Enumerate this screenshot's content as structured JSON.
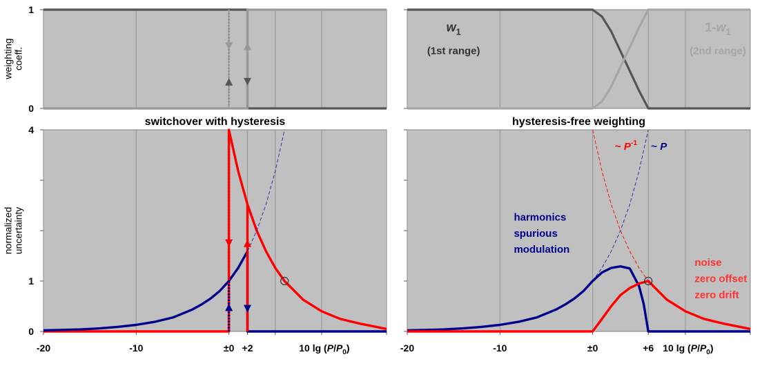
{
  "chart_data": [
    {
      "type": "line",
      "title": "",
      "xlim": [
        -20,
        17
      ],
      "ylim": [
        0,
        1
      ],
      "ylabel": [
        "weighting",
        "coeff."
      ],
      "yticks": [
        {
          "v": 0,
          "label": "0"
        },
        {
          "v": 1,
          "label": "1"
        }
      ],
      "xgrid": [
        -20,
        -10,
        0,
        2,
        5,
        10,
        17
      ],
      "series": [
        {
          "name": "range 1 switching down",
          "color": "#555555",
          "style": "solid",
          "width": 3.2,
          "x": [
            -20,
            2,
            2,
            17
          ],
          "y": [
            1,
            1,
            0,
            0
          ]
        },
        {
          "name": "range 2 switching up",
          "color": "#999999",
          "style": "solid",
          "width": 3.2,
          "x": [
            -20,
            2,
            2,
            17
          ],
          "y": [
            0,
            0,
            1,
            1
          ]
        },
        {
          "name": "range 1 switching back",
          "color": "#555555",
          "style": "dotted",
          "width": 2.6,
          "x": [
            0,
            0
          ],
          "y": [
            1,
            0
          ]
        },
        {
          "name": "range 2 switching back",
          "color": "#999999",
          "style": "dotted",
          "width": 2.6,
          "x": [
            0,
            0
          ],
          "y": [
            1,
            0
          ]
        }
      ],
      "arrows": [
        {
          "x": 0,
          "y": 0.27,
          "dir": "up",
          "color": "#555555"
        },
        {
          "x": 0,
          "y": 0.63,
          "dir": "down",
          "color": "#999999"
        },
        {
          "x": 2,
          "y": 0.63,
          "dir": "up",
          "color": "#999999"
        },
        {
          "x": 2,
          "y": 0.27,
          "dir": "down",
          "color": "#555555"
        }
      ]
    },
    {
      "type": "line",
      "title": "",
      "xlim": [
        -20,
        17
      ],
      "ylim": [
        0,
        1
      ],
      "xgrid": [
        -20,
        -10,
        0,
        6,
        10,
        17
      ],
      "series": [
        {
          "name": "w1",
          "color": "#555555",
          "style": "solid",
          "width": 3.2,
          "x": [
            -20,
            0,
            1,
            2,
            3,
            4,
            5,
            6,
            17
          ],
          "y": [
            1,
            1,
            0.93,
            0.78,
            0.58,
            0.38,
            0.18,
            0,
            0
          ]
        },
        {
          "name": "1-w1",
          "color": "#a6a6a6",
          "style": "solid",
          "width": 3.2,
          "x": [
            -20,
            0,
            1,
            2,
            3,
            4,
            5,
            6,
            17
          ],
          "y": [
            0,
            0,
            0.07,
            0.22,
            0.42,
            0.62,
            0.82,
            1,
            1
          ]
        }
      ],
      "labels": [
        {
          "x": -15,
          "y": 0.78,
          "text": "w",
          "sub": "1",
          "color": "#333333",
          "size": 18
        },
        {
          "x": -15,
          "y": 0.55,
          "text": "(1st range)",
          "color": "#333333",
          "size": 15
        },
        {
          "x": 13.5,
          "y": 0.78,
          "text": "1-w",
          "sub": "1",
          "color": "#a6a6a6",
          "size": 18
        },
        {
          "x": 13.5,
          "y": 0.55,
          "text": "(2nd range)",
          "color": "#a6a6a6",
          "size": 15
        }
      ]
    },
    {
      "type": "line",
      "title": "switchover with hysteresis",
      "xlim": [
        -20,
        17
      ],
      "ylim": [
        0,
        4
      ],
      "ylabel": [
        "normalized",
        "uncertainty"
      ],
      "yticks": [
        {
          "v": 0,
          "label": "0"
        },
        {
          "v": 1,
          "label": "1"
        },
        {
          "v": 2,
          "label": ""
        },
        {
          "v": 3,
          "label": ""
        },
        {
          "v": 4,
          "label": "4"
        }
      ],
      "xticks": [
        {
          "v": -20,
          "label": "-20"
        },
        {
          "v": -10,
          "label": "-10"
        },
        {
          "v": 0,
          "label": "±0"
        },
        {
          "v": 2,
          "label": "+2"
        }
      ],
      "xgrid": [
        -20,
        -10,
        0,
        2,
        5,
        10,
        17
      ],
      "xlabel": "10 lg (P/P0)",
      "series": [
        {
          "name": "noise (after switch)",
          "color": "#ff0000",
          "style": "solid",
          "width": 3.4,
          "x": [
            -20,
            0,
            0,
            1,
            2,
            3,
            4,
            5,
            6,
            8,
            10,
            12,
            14,
            17
          ],
          "y": [
            0,
            0,
            4,
            3.18,
            2.52,
            2.0,
            1.59,
            1.26,
            1.0,
            0.63,
            0.4,
            0.25,
            0.16,
            0.05
          ]
        },
        {
          "name": "harmonics (before switch)",
          "color": "#00008b",
          "style": "solid",
          "width": 3.4,
          "x": [
            -20,
            -18,
            -16,
            -14,
            -12,
            -10,
            -8,
            -6,
            -4,
            -3,
            -2,
            -1,
            0,
            1,
            2,
            2,
            17
          ],
          "y": [
            0.02,
            0.03,
            0.04,
            0.06,
            0.09,
            0.13,
            0.19,
            0.28,
            0.43,
            0.53,
            0.65,
            0.8,
            1.0,
            1.26,
            1.59,
            0,
            0
          ]
        },
        {
          "name": "noise dotted branch",
          "color": "#ff0000",
          "style": "dotted",
          "width": 3.4,
          "x": [
            0,
            0
          ],
          "y": [
            4,
            0
          ]
        },
        {
          "name": "harmonics dotted branch",
          "color": "#00008b",
          "style": "dotted",
          "width": 3.4,
          "x": [
            0,
            0
          ],
          "y": [
            0,
            1.0
          ]
        },
        {
          "name": "red jump at +2",
          "color": "#ff0000",
          "style": "solid",
          "width": 3.4,
          "x": [
            2,
            2
          ],
          "y": [
            0,
            2.52
          ]
        },
        {
          "name": "~P extension",
          "color": "#1f1f9e",
          "style": "dashed",
          "width": 0.9,
          "x": [
            2,
            3,
            4,
            5,
            6
          ],
          "y": [
            1.59,
            2.0,
            2.52,
            3.18,
            4.0
          ]
        }
      ],
      "arrows": [
        {
          "x": 0,
          "y": 1.75,
          "dir": "down",
          "color": "#ff0000"
        },
        {
          "x": 0,
          "y": 0.48,
          "dir": "up",
          "color": "#00008b"
        },
        {
          "x": 2,
          "y": 1.75,
          "dir": "up",
          "color": "#ff0000"
        },
        {
          "x": 2,
          "y": 0.45,
          "dir": "down",
          "color": "#00008b"
        }
      ],
      "markers": [
        {
          "x": 6,
          "y": 1.0,
          "shape": "open-circle"
        }
      ]
    },
    {
      "type": "line",
      "title": "hysteresis-free weighting",
      "xlim": [
        -20,
        17
      ],
      "ylim": [
        0,
        4
      ],
      "yticks": [
        {
          "v": 0,
          "label": ""
        },
        {
          "v": 1,
          "label": ""
        },
        {
          "v": 2,
          "label": ""
        },
        {
          "v": 3,
          "label": ""
        },
        {
          "v": 4,
          "label": ""
        }
      ],
      "xticks": [
        {
          "v": -20,
          "label": "-20"
        },
        {
          "v": -10,
          "label": "-10"
        },
        {
          "v": 0,
          "label": "±0"
        },
        {
          "v": 6,
          "label": "+6"
        }
      ],
      "xgrid": [
        -20,
        -10,
        0,
        6,
        10,
        17
      ],
      "xlabel": "10 lg (P/P0)",
      "series": [
        {
          "name": "~P^-1 dashed",
          "color": "#ff0000",
          "style": "dashed",
          "width": 0.9,
          "x": [
            0,
            1,
            2,
            3,
            4,
            5,
            6
          ],
          "y": [
            4.0,
            3.18,
            2.52,
            2.0,
            1.59,
            1.26,
            1.0
          ]
        },
        {
          "name": "~P dashed",
          "color": "#1f1f9e",
          "style": "dashed",
          "width": 0.9,
          "x": [
            0,
            1,
            2,
            3,
            4,
            5,
            6
          ],
          "y": [
            1.0,
            1.26,
            1.59,
            2.0,
            2.52,
            3.18,
            4.0
          ]
        },
        {
          "name": "harmonics weighted",
          "color": "#00008b",
          "style": "solid",
          "width": 3.4,
          "x": [
            -20,
            -18,
            -16,
            -14,
            -12,
            -10,
            -8,
            -6,
            -4,
            -3,
            -2,
            -1,
            0,
            1,
            2,
            3,
            4,
            5,
            5.5,
            6,
            17
          ],
          "y": [
            0.02,
            0.03,
            0.04,
            0.06,
            0.09,
            0.13,
            0.19,
            0.28,
            0.43,
            0.53,
            0.65,
            0.8,
            1.0,
            1.17,
            1.26,
            1.29,
            1.25,
            0.9,
            0.55,
            0,
            0
          ]
        },
        {
          "name": "noise weighted",
          "color": "#ff0000",
          "style": "solid",
          "width": 3.4,
          "x": [
            -20,
            0,
            1,
            2,
            3,
            4,
            5,
            6,
            8,
            10,
            12,
            14,
            17
          ],
          "y": [
            0,
            0,
            0.25,
            0.5,
            0.72,
            0.86,
            0.95,
            1.0,
            0.63,
            0.4,
            0.25,
            0.16,
            0.05
          ]
        }
      ],
      "markers": [
        {
          "x": 6,
          "y": 1.0,
          "shape": "open-circle"
        }
      ],
      "labels": [
        {
          "x": 2.4,
          "y": 3.6,
          "text": "~ P",
          "sup": "-1",
          "color": "#ff0000",
          "size": 15
        },
        {
          "x": 6.3,
          "y": 3.6,
          "text": "~ P",
          "color": "#00008b",
          "size": 15
        },
        {
          "x": -8.5,
          "y": 2.2,
          "text": "harmonics",
          "color": "#00008b",
          "size": 15
        },
        {
          "x": -8.5,
          "y": 1.88,
          "text": "spurious",
          "color": "#00008b",
          "size": 15
        },
        {
          "x": -8.5,
          "y": 1.56,
          "text": "modulation",
          "color": "#00008b",
          "size": 15
        },
        {
          "x": 11,
          "y": 1.3,
          "text": "noise",
          "color": "#ff3333",
          "size": 15
        },
        {
          "x": 11,
          "y": 0.98,
          "text": "zero offset",
          "color": "#ff3333",
          "size": 15
        },
        {
          "x": 11,
          "y": 0.66,
          "text": "zero drift",
          "color": "#ff3333",
          "size": 15
        }
      ]
    }
  ]
}
